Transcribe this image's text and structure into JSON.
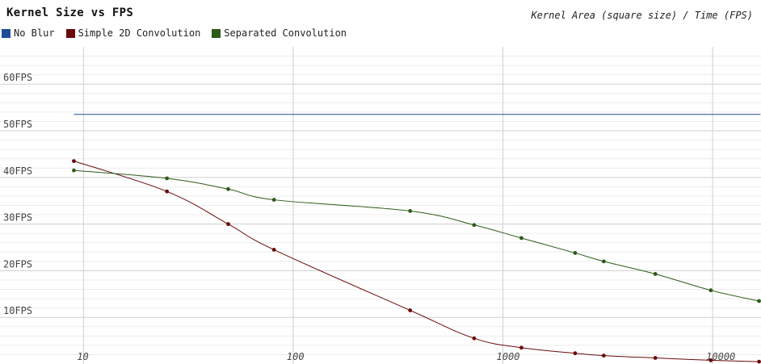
{
  "chart_data": {
    "type": "line",
    "title": "Kernel Size vs FPS",
    "subtitle": "Kernel Area (square size) / Time (FPS)",
    "x_scale": "log",
    "xlim": [
      4,
      17000
    ],
    "ylim": [
      0,
      68
    ],
    "x_ticks": [
      {
        "value": 10,
        "label": "10"
      },
      {
        "value": 100,
        "label": "100"
      },
      {
        "value": 1000,
        "label": "1000"
      },
      {
        "value": 10000,
        "label": "10000"
      }
    ],
    "y_ticks": [
      {
        "value": 10,
        "label": "10FPS"
      },
      {
        "value": 20,
        "label": "20FPS"
      },
      {
        "value": 30,
        "label": "30FPS"
      },
      {
        "value": 40,
        "label": "40FPS"
      },
      {
        "value": 50,
        "label": "50FPS"
      },
      {
        "value": 60,
        "label": "60FPS"
      }
    ],
    "grid": true,
    "legend_position": "top-left",
    "series": [
      {
        "name": "No Blur",
        "color": "#1f4e99",
        "points": [
          [
            9,
            53.5
          ],
          [
            16900,
            53.5
          ]
        ],
        "markers": false
      },
      {
        "name": "Simple 2D Convolution",
        "color": "#6b0a0a",
        "points": [
          [
            9,
            43.5
          ],
          [
            25,
            37
          ],
          [
            49,
            30
          ],
          [
            81,
            24.5
          ],
          [
            361,
            11.5
          ],
          [
            729,
            5.5
          ],
          [
            1225,
            3.5
          ],
          [
            2209,
            2.3
          ],
          [
            3025,
            1.8
          ],
          [
            5329,
            1.3
          ],
          [
            9801,
            0.8
          ],
          [
            16641,
            0.5
          ]
        ],
        "markers": true
      },
      {
        "name": "Separated Convolution",
        "color": "#2d5a18",
        "points": [
          [
            9,
            41.5
          ],
          [
            25,
            39.8
          ],
          [
            49,
            37.5
          ],
          [
            81,
            35.2
          ],
          [
            361,
            32.8
          ],
          [
            729,
            29.8
          ],
          [
            1225,
            27
          ],
          [
            2209,
            23.8
          ],
          [
            3025,
            22
          ],
          [
            5329,
            19.3
          ],
          [
            9801,
            15.8
          ],
          [
            16641,
            13.5
          ]
        ],
        "markers": true
      }
    ]
  }
}
